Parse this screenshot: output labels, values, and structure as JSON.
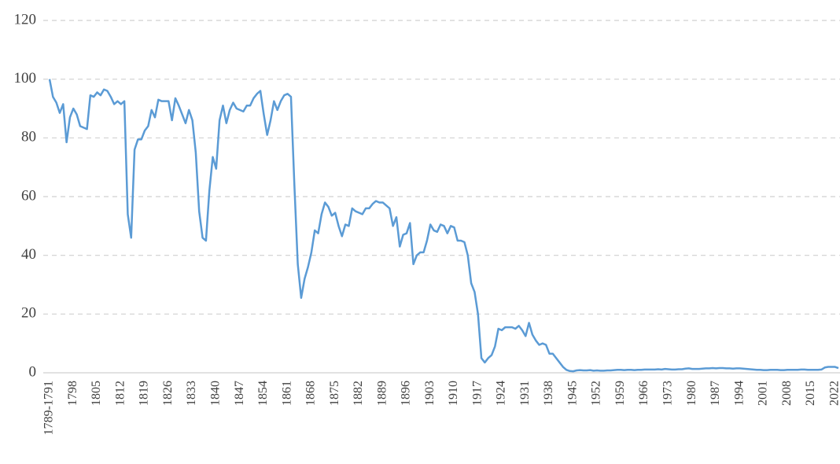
{
  "chart_data": {
    "type": "line",
    "categories": [
      "1789-1791",
      null,
      null,
      null,
      null,
      null,
      null,
      "1798",
      null,
      null,
      null,
      null,
      null,
      null,
      "1805",
      null,
      null,
      null,
      null,
      null,
      null,
      "1812",
      null,
      null,
      null,
      null,
      null,
      null,
      "1819",
      null,
      null,
      null,
      null,
      null,
      null,
      "1826",
      null,
      null,
      null,
      null,
      null,
      null,
      "1833",
      null,
      null,
      null,
      null,
      null,
      null,
      "1840",
      null,
      null,
      null,
      null,
      null,
      null,
      "1847",
      null,
      null,
      null,
      null,
      null,
      null,
      "1854",
      null,
      null,
      null,
      null,
      null,
      null,
      "1861",
      null,
      null,
      null,
      null,
      null,
      null,
      "1868",
      null,
      null,
      null,
      null,
      null,
      null,
      "1875",
      null,
      null,
      null,
      null,
      null,
      null,
      "1882",
      null,
      null,
      null,
      null,
      null,
      null,
      "1889",
      null,
      null,
      null,
      null,
      null,
      null,
      "1896",
      null,
      null,
      null,
      null,
      null,
      null,
      "1903",
      null,
      null,
      null,
      null,
      null,
      null,
      "1910",
      null,
      null,
      null,
      null,
      null,
      null,
      "1917",
      null,
      null,
      null,
      null,
      null,
      null,
      "1924",
      null,
      null,
      null,
      null,
      null,
      null,
      "1931",
      null,
      null,
      null,
      null,
      null,
      null,
      "1938",
      null,
      null,
      null,
      null,
      null,
      null,
      "1945",
      null,
      null,
      null,
      null,
      null,
      null,
      "1952",
      null,
      null,
      null,
      null,
      null,
      null,
      "1959",
      null,
      null,
      null,
      null,
      null,
      null,
      "1966",
      null,
      null,
      null,
      null,
      null,
      null,
      "1973",
      null,
      null,
      null,
      null,
      null,
      null,
      "1980",
      null,
      null,
      null,
      null,
      null,
      null,
      "1987",
      null,
      null,
      null,
      null,
      null,
      null,
      "1994",
      null,
      null,
      null,
      null,
      null,
      null,
      "2001",
      null,
      null,
      null,
      null,
      null,
      null,
      "2008",
      null,
      null,
      null,
      null,
      null,
      null,
      "2015",
      null,
      null,
      null,
      null,
      null,
      null,
      "2022",
      null
    ],
    "values": [
      100,
      94,
      92,
      88.5,
      91.5,
      78.5,
      87,
      90,
      88,
      84,
      83.5,
      83,
      94.5,
      94,
      95.5,
      94.5,
      96.5,
      96,
      94,
      91.5,
      92.5,
      91.5,
      92.5,
      54,
      46,
      76,
      79.5,
      79.5,
      82.5,
      84,
      89.5,
      87,
      93,
      92.5,
      92.5,
      92.5,
      86,
      93.5,
      91,
      88,
      85,
      89.5,
      86,
      75,
      55,
      46,
      45,
      62,
      73.5,
      69.5,
      86,
      91,
      85,
      89.5,
      92,
      90,
      89.5,
      89,
      91,
      91,
      93.5,
      95,
      96,
      88,
      81,
      86,
      92.5,
      89.5,
      92.5,
      94.5,
      95,
      94,
      64,
      37,
      25.5,
      32,
      36,
      41,
      48.5,
      47.5,
      54,
      58,
      56.5,
      53.5,
      54.5,
      50,
      46.5,
      50.5,
      50,
      56,
      55,
      54.5,
      54,
      56,
      56,
      57.5,
      58.5,
      58,
      58,
      57,
      56,
      50,
      53,
      43,
      47,
      47.5,
      51,
      37,
      40,
      41,
      41,
      45,
      50.5,
      48.5,
      48,
      50.5,
      50,
      47.5,
      50,
      49.5,
      45,
      45,
      44.5,
      40,
      30.5,
      27.5,
      20,
      5,
      3.5,
      5,
      6,
      9,
      15,
      14.5,
      15.5,
      15.5,
      15.5,
      15,
      16,
      14.5,
      12.5,
      17,
      13,
      11,
      9.5,
      10,
      9.5,
      6.5,
      6.5,
      5,
      3.5,
      2,
      1,
      0.6,
      0.5,
      0.8,
      0.9,
      0.8,
      0.8,
      0.9,
      0.7,
      0.8,
      0.7,
      0.7,
      0.8,
      0.8,
      0.9,
      1,
      1,
      0.9,
      1,
      1,
      0.9,
      1,
      1,
      1.1,
      1.1,
      1.1,
      1.1,
      1.2,
      1.1,
      1.3,
      1.2,
      1.1,
      1.1,
      1.2,
      1.2,
      1.4,
      1.5,
      1.3,
      1.3,
      1.3,
      1.4,
      1.5,
      1.5,
      1.6,
      1.5,
      1.6,
      1.6,
      1.5,
      1.5,
      1.4,
      1.5,
      1.5,
      1.4,
      1.3,
      1.2,
      1.1,
      1,
      1,
      0.9,
      0.9,
      1,
      1,
      1,
      0.9,
      0.9,
      1,
      1,
      1,
      1,
      1.1,
      1.1,
      1,
      1,
      1,
      1,
      1.1,
      1.8,
      2,
      2,
      2,
      1.6
    ],
    "color": "#5b9bd5",
    "ylim": [
      0,
      120
    ],
    "yticks": [
      0,
      20,
      40,
      60,
      80,
      100,
      120
    ],
    "grid": true
  }
}
